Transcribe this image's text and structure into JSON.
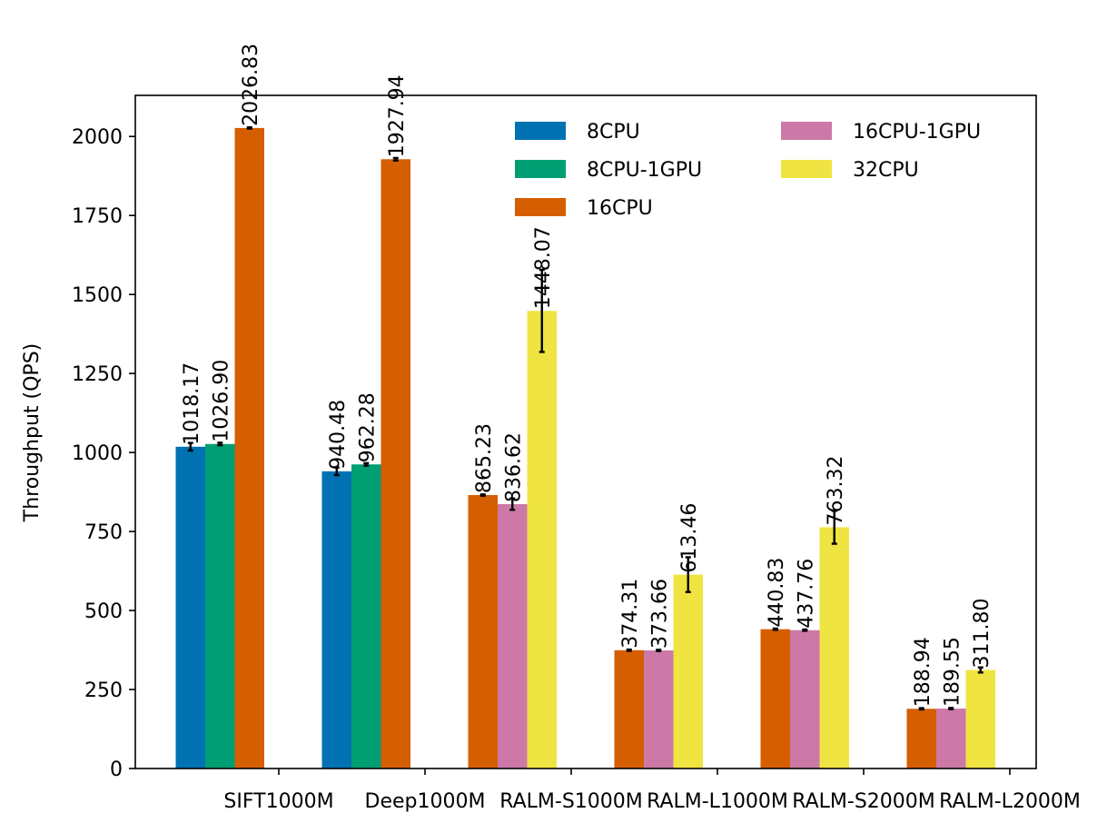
{
  "chart_data": {
    "type": "bar",
    "title": "",
    "xlabel": "",
    "ylabel": "Throughput (QPS)",
    "ylim": [
      0,
      2130
    ],
    "yticks": [
      0,
      250,
      500,
      750,
      1000,
      1250,
      1500,
      1750,
      2000
    ],
    "ytick_labels": [
      "0",
      "250",
      "500",
      "750",
      "1000",
      "1250",
      "1500",
      "1750",
      "2000"
    ],
    "grid": false,
    "legend": {
      "placement": "upper-right",
      "columns": 2
    },
    "categories": [
      "SIFT1000M",
      "Deep1000M",
      "RALM-S1000M",
      "RALM-L1000M",
      "RALM-S2000M",
      "RALM-L2000M"
    ],
    "series": [
      {
        "name": "8CPU",
        "color": "#0072b2",
        "values": [
          1018.17,
          940.48,
          null,
          null,
          null,
          null
        ],
        "errors": [
          12,
          12,
          null,
          null,
          null,
          null
        ],
        "labels": [
          "1018.17",
          "940.48",
          null,
          null,
          null,
          null
        ]
      },
      {
        "name": "8CPU-1GPU",
        "color": "#009e73",
        "values": [
          1026.9,
          962.28,
          null,
          null,
          null,
          null
        ],
        "errors": [
          4,
          4,
          null,
          null,
          null,
          null
        ],
        "labels": [
          "1026.90",
          "962.28",
          null,
          null,
          null,
          null
        ]
      },
      {
        "name": "16CPU",
        "color": "#d55e00",
        "values": [
          2026.83,
          1927.94,
          865.23,
          374.31,
          440.83,
          188.94
        ],
        "errors": [
          2,
          4,
          2,
          2,
          2,
          2
        ],
        "labels": [
          "2026.83",
          "1927.94",
          "865.23",
          "374.31",
          "440.83",
          "188.94"
        ]
      },
      {
        "name": "16CPU-1GPU",
        "color": "#cc79a7",
        "values": [
          null,
          null,
          836.62,
          373.66,
          437.76,
          189.55
        ],
        "errors": [
          null,
          null,
          18,
          2,
          2,
          2
        ],
        "labels": [
          null,
          null,
          "836.62",
          "373.66",
          "437.76",
          "189.55"
        ]
      },
      {
        "name": "32CPU",
        "color": "#f0e442",
        "values": [
          null,
          null,
          1448.07,
          613.46,
          763.32,
          311.8
        ],
        "errors": [
          null,
          null,
          130,
          55,
          52,
          8
        ],
        "labels": [
          null,
          null,
          "1448.07",
          "613.46",
          "763.32",
          "311.80"
        ]
      }
    ]
  }
}
